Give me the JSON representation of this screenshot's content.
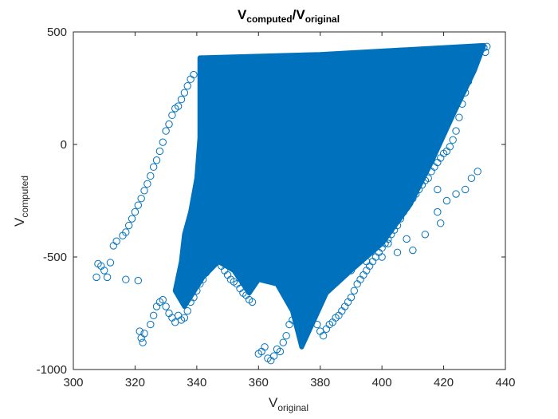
{
  "chart_data": {
    "type": "scatter",
    "title": {
      "base": "V",
      "sub1": "computed",
      "sep": "/V",
      "sub2": "original"
    },
    "xlabel": {
      "base": "V",
      "sub": "original"
    },
    "ylabel": {
      "base": "V",
      "sub": "computed"
    },
    "xlim": [
      300,
      440
    ],
    "ylim": [
      -1000,
      500
    ],
    "xticks": [
      "300",
      "320",
      "340",
      "360",
      "380",
      "400",
      "420",
      "440"
    ],
    "yticks": [
      "500",
      "0",
      "-500",
      "-1000"
    ],
    "marker": "circle-open",
    "color": "#0072BD",
    "grid": false,
    "legend": "none",
    "series": [
      {
        "values": [
          [
            307.5,
            -590
          ],
          [
            308,
            -530
          ],
          [
            309,
            -540
          ],
          [
            310,
            -560
          ],
          [
            311,
            -590
          ],
          [
            312,
            -525
          ],
          [
            313,
            -450
          ],
          [
            314,
            -430
          ],
          [
            316,
            -405
          ],
          [
            317,
            -390
          ],
          [
            318,
            -360
          ],
          [
            319,
            -330
          ],
          [
            320,
            -300
          ],
          [
            321,
            -270
          ],
          [
            322,
            -240
          ],
          [
            323,
            -205
          ],
          [
            324,
            -175
          ],
          [
            325,
            -140
          ],
          [
            326,
            -100
          ],
          [
            327,
            -70
          ],
          [
            328,
            -30
          ],
          [
            329,
            10
          ],
          [
            330,
            60
          ],
          [
            331,
            90
          ],
          [
            332,
            130
          ],
          [
            333,
            160
          ],
          [
            334,
            170
          ],
          [
            335,
            200
          ],
          [
            336,
            230
          ],
          [
            337,
            260
          ],
          [
            338,
            290
          ],
          [
            339,
            310
          ],
          [
            317,
            -600
          ],
          [
            321,
            -605
          ],
          [
            321.5,
            -830
          ],
          [
            322,
            -860
          ],
          [
            322.5,
            -880
          ],
          [
            323,
            -840
          ],
          [
            325,
            -800
          ],
          [
            326,
            -760
          ],
          [
            327,
            -720
          ],
          [
            328,
            -700
          ],
          [
            329,
            -690
          ],
          [
            330,
            -720
          ],
          [
            331,
            -750
          ],
          [
            332,
            -770
          ],
          [
            333,
            -790
          ],
          [
            334,
            -760
          ],
          [
            335,
            -780
          ],
          [
            336,
            -770
          ],
          [
            337,
            -740
          ],
          [
            338,
            -700
          ],
          [
            339,
            -680
          ],
          [
            340,
            -650
          ],
          [
            341,
            -620
          ],
          [
            342,
            -600
          ],
          [
            343,
            -570
          ],
          [
            344,
            -540
          ],
          [
            345,
            -510
          ],
          [
            346,
            -490
          ],
          [
            347,
            -510
          ],
          [
            348,
            -540
          ],
          [
            349,
            -560
          ],
          [
            350,
            -580
          ],
          [
            351,
            -600
          ],
          [
            352,
            -610
          ],
          [
            353,
            -620
          ],
          [
            354,
            -640
          ],
          [
            355,
            -660
          ],
          [
            356,
            -670
          ],
          [
            357,
            -690
          ],
          [
            358,
            -700
          ],
          [
            360,
            -930
          ],
          [
            361,
            -920
          ],
          [
            362,
            -900
          ],
          [
            363,
            -950
          ],
          [
            364,
            -960
          ],
          [
            365,
            -940
          ],
          [
            366,
            -910
          ],
          [
            367,
            -920
          ],
          [
            368,
            -880
          ],
          [
            369,
            -850
          ],
          [
            370,
            -800
          ],
          [
            371,
            -780
          ],
          [
            372,
            -760
          ],
          [
            373,
            -740
          ],
          [
            374,
            -750
          ],
          [
            375,
            -720
          ],
          [
            376,
            -700
          ],
          [
            377,
            -690
          ],
          [
            378,
            -760
          ],
          [
            379,
            -800
          ],
          [
            380,
            -830
          ],
          [
            381,
            -850
          ],
          [
            382,
            -820
          ],
          [
            383,
            -800
          ],
          [
            384,
            -790
          ],
          [
            385,
            -770
          ],
          [
            386,
            -760
          ],
          [
            387,
            -740
          ],
          [
            388,
            -720
          ],
          [
            389,
            -700
          ],
          [
            390,
            -680
          ],
          [
            391,
            -650
          ],
          [
            392,
            -620
          ],
          [
            393,
            -600
          ],
          [
            394,
            -580
          ],
          [
            395,
            -560
          ],
          [
            396,
            -540
          ],
          [
            397,
            -520
          ],
          [
            398,
            -500
          ],
          [
            399,
            -480
          ],
          [
            400,
            -460
          ],
          [
            401,
            -440
          ],
          [
            402,
            -420
          ],
          [
            403,
            -400
          ],
          [
            404,
            -380
          ],
          [
            405,
            -360
          ],
          [
            406,
            -330
          ],
          [
            407,
            -300
          ],
          [
            408,
            -280
          ],
          [
            409,
            -260
          ],
          [
            410,
            -240
          ],
          [
            411,
            -220
          ],
          [
            412,
            -200
          ],
          [
            413,
            -180
          ],
          [
            414,
            -160
          ],
          [
            415,
            -150
          ],
          [
            416,
            -120
          ],
          [
            417,
            -100
          ],
          [
            418,
            -80
          ],
          [
            419,
            -60
          ],
          [
            420,
            -40
          ],
          [
            421,
            -30
          ],
          [
            422,
            -10
          ],
          [
            423,
            20
          ],
          [
            424,
            60
          ],
          [
            425,
            120
          ],
          [
            426,
            180
          ],
          [
            427,
            230
          ],
          [
            428,
            280
          ],
          [
            429,
            330
          ],
          [
            430,
            370
          ],
          [
            431,
            400
          ],
          [
            432,
            420
          ],
          [
            433,
            430
          ],
          [
            434,
            435
          ],
          [
            433.5,
            410
          ],
          [
            430,
            350
          ],
          [
            425,
            270
          ],
          [
            420,
            180
          ],
          [
            415,
            100
          ],
          [
            410,
            20
          ],
          [
            405,
            -60
          ],
          [
            400,
            -150
          ],
          [
            395,
            -230
          ],
          [
            390,
            -330
          ],
          [
            385,
            -420
          ],
          [
            380,
            -500
          ],
          [
            375,
            -600
          ],
          [
            390,
            -560
          ],
          [
            395,
            -520
          ],
          [
            400,
            -500
          ],
          [
            405,
            -480
          ],
          [
            410,
            -470
          ],
          [
            402,
            -440
          ],
          [
            408,
            -420
          ],
          [
            414,
            -400
          ],
          [
            419,
            -350
          ],
          [
            418,
            -300
          ],
          [
            421,
            -250
          ],
          [
            424,
            -220
          ],
          [
            427,
            -200
          ],
          [
            429,
            -150
          ],
          [
            431,
            -120
          ],
          [
            418,
            -200
          ]
        ]
      }
    ],
    "fill_region": [
      [
        338,
        -300
      ],
      [
        340,
        -150
      ],
      [
        341,
        30
      ],
      [
        341,
        385
      ],
      [
        380,
        400
      ],
      [
        433,
        440
      ],
      [
        430,
        330
      ],
      [
        423,
        130
      ],
      [
        416,
        -80
      ],
      [
        409,
        -270
      ],
      [
        400,
        -440
      ],
      [
        390,
        -560
      ],
      [
        382,
        -660
      ],
      [
        378,
        -780
      ],
      [
        374,
        -900
      ],
      [
        371,
        -740
      ],
      [
        366,
        -620
      ],
      [
        360,
        -600
      ],
      [
        357,
        -660
      ],
      [
        352,
        -560
      ],
      [
        347,
        -520
      ],
      [
        342,
        -590
      ],
      [
        336,
        -720
      ],
      [
        333,
        -650
      ],
      [
        335,
        -520
      ],
      [
        336,
        -400
      ],
      [
        338,
        -300
      ]
    ]
  }
}
